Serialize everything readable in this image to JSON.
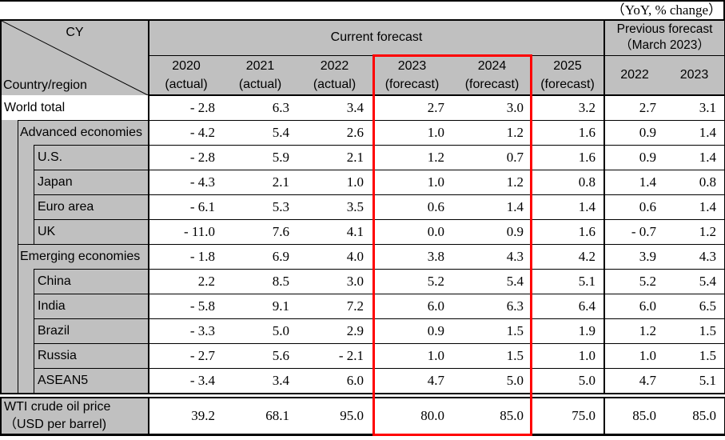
{
  "note_top_right": "（YoY, % change）",
  "header": {
    "corner_top": "CY",
    "corner_bottom": "Country/region",
    "current_forecast_label": "Current forecast",
    "previous_forecast_line1": "Previous forecast",
    "previous_forecast_line2": "（March 2023）",
    "year_columns": [
      {
        "year": "2020",
        "kind": "(actual)"
      },
      {
        "year": "2021",
        "kind": "(actual)"
      },
      {
        "year": "2022",
        "kind": "(actual)"
      },
      {
        "year": "2023",
        "kind": "(forecast)"
      },
      {
        "year": "2024",
        "kind": "(forecast)"
      },
      {
        "year": "2025",
        "kind": "(forecast)"
      }
    ],
    "previous_year_columns": [
      "2022",
      "2023"
    ]
  },
  "rows": [
    {
      "label": "World total",
      "level": 0,
      "values": [
        "- 2.8",
        "6.3",
        "3.4",
        "2.7",
        "3.0",
        "3.2",
        "2.7",
        "3.1"
      ]
    },
    {
      "label": "Advanced economies",
      "level": 1,
      "values": [
        "- 4.2",
        "5.4",
        "2.6",
        "1.0",
        "1.2",
        "1.6",
        "0.9",
        "1.4"
      ]
    },
    {
      "label": "U.S.",
      "level": 2,
      "values": [
        "- 2.8",
        "5.9",
        "2.1",
        "1.2",
        "0.7",
        "1.6",
        "0.9",
        "1.4"
      ]
    },
    {
      "label": "Japan",
      "level": 2,
      "values": [
        "- 4.3",
        "2.1",
        "1.0",
        "1.0",
        "1.2",
        "0.8",
        "1.4",
        "0.8"
      ]
    },
    {
      "label": "Euro area",
      "level": 2,
      "values": [
        "- 6.1",
        "5.3",
        "3.5",
        "0.6",
        "1.4",
        "1.4",
        "0.6",
        "1.4"
      ]
    },
    {
      "label": "UK",
      "level": 2,
      "values": [
        "- 11.0",
        "7.6",
        "4.1",
        "0.0",
        "0.9",
        "1.6",
        "- 0.7",
        "1.2"
      ]
    },
    {
      "label": "Emerging economies",
      "level": 1,
      "values": [
        "- 1.8",
        "6.9",
        "4.0",
        "3.8",
        "4.3",
        "4.2",
        "3.9",
        "4.3"
      ]
    },
    {
      "label": "China",
      "level": 2,
      "values": [
        "2.2",
        "8.5",
        "3.0",
        "5.2",
        "5.4",
        "5.1",
        "5.2",
        "5.4"
      ]
    },
    {
      "label": "India",
      "level": 2,
      "values": [
        "- 5.8",
        "9.1",
        "7.2",
        "6.0",
        "6.3",
        "6.4",
        "6.0",
        "6.5"
      ]
    },
    {
      "label": "Brazil",
      "level": 2,
      "values": [
        "- 3.3",
        "5.0",
        "2.9",
        "0.9",
        "1.5",
        "1.9",
        "1.2",
        "1.5"
      ]
    },
    {
      "label": "Russia",
      "level": 2,
      "values": [
        "- 2.7",
        "5.6",
        "- 2.1",
        "1.0",
        "1.5",
        "1.0",
        "1.0",
        "1.5"
      ]
    },
    {
      "label": "ASEAN5",
      "level": 2,
      "values": [
        "- 3.4",
        "3.4",
        "6.0",
        "4.7",
        "5.0",
        "5.0",
        "4.7",
        "5.1"
      ]
    }
  ],
  "wti": {
    "label_line1": "WTI crude oil price",
    "label_line2": "（USD per barrel)",
    "values": [
      "39.2",
      "68.1",
      "95.0",
      "80.0",
      "85.0",
      "75.0",
      "85.0",
      "85.0"
    ]
  },
  "highlight": {
    "color": "#ff0000",
    "columns": [
      "2023 (forecast)",
      "2024 (forecast)"
    ]
  },
  "colors": {
    "header_bg": "#c0c0c0",
    "body_bg": "#ffffff",
    "border": "#000000"
  }
}
